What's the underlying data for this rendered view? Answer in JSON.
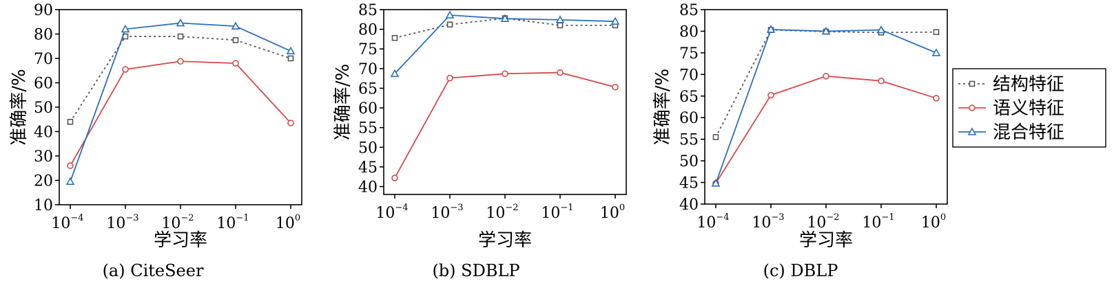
{
  "chart_data": [
    {
      "type": "line",
      "caption": "(a) CiteSeer",
      "xlabel": "学习率",
      "ylabel": "准确率/%",
      "x_ticks": [
        {
          "base": "10",
          "exp": "−4"
        },
        {
          "base": "10",
          "exp": "−3"
        },
        {
          "base": "10",
          "exp": "−2"
        },
        {
          "base": "10",
          "exp": "−1"
        },
        {
          "base": "10",
          "exp": "0"
        }
      ],
      "x": [
        0.0001,
        0.001,
        0.01,
        0.1,
        1
      ],
      "ylim": [
        10,
        90
      ],
      "yticks": [
        "10",
        "20",
        "30",
        "40",
        "50",
        "60",
        "70",
        "80",
        "90"
      ],
      "series": [
        {
          "name": "结构特征",
          "values": [
            44,
            79,
            79,
            77.5,
            70
          ]
        },
        {
          "name": "语义特征",
          "values": [
            26,
            65.5,
            68.8,
            68,
            43.5
          ]
        },
        {
          "name": "混合特征",
          "values": [
            19.5,
            82,
            84.5,
            83.2,
            73
          ]
        }
      ]
    },
    {
      "type": "line",
      "caption": "(b) SDBLP",
      "xlabel": "学习率",
      "ylabel": "准确率/%",
      "x_ticks": [
        {
          "base": "10",
          "exp": "−4"
        },
        {
          "base": "10",
          "exp": "−3"
        },
        {
          "base": "10",
          "exp": "−2"
        },
        {
          "base": "10",
          "exp": "−1"
        },
        {
          "base": "10",
          "exp": "0"
        }
      ],
      "x": [
        0.0001,
        0.001,
        0.01,
        0.1,
        1
      ],
      "ylim": [
        38,
        85
      ],
      "yticks": [
        "40",
        "45",
        "50",
        "55",
        "60",
        "65",
        "70",
        "75",
        "80",
        "85"
      ],
      "series": [
        {
          "name": "结构特征",
          "values": [
            77.8,
            81.2,
            82.8,
            81,
            81
          ]
        },
        {
          "name": "语义特征",
          "values": [
            42.2,
            67.6,
            68.7,
            69,
            65.3
          ]
        },
        {
          "name": "混合特征",
          "values": [
            68.7,
            83.6,
            82.7,
            82.4,
            82
          ]
        }
      ]
    },
    {
      "type": "line",
      "caption": "(c) DBLP",
      "xlabel": "学习率",
      "ylabel": "准确率/%",
      "x_ticks": [
        {
          "base": "10",
          "exp": "−4"
        },
        {
          "base": "10",
          "exp": "−3"
        },
        {
          "base": "10",
          "exp": "−2"
        },
        {
          "base": "10",
          "exp": "−1"
        },
        {
          "base": "10",
          "exp": "0"
        }
      ],
      "x": [
        0.0001,
        0.001,
        0.01,
        0.1,
        1
      ],
      "ylim": [
        40,
        85
      ],
      "yticks": [
        "40",
        "45",
        "50",
        "55",
        "60",
        "65",
        "70",
        "75",
        "80",
        "85"
      ],
      "series": [
        {
          "name": "结构特征",
          "values": [
            55.5,
            80.3,
            79.9,
            79.7,
            79.8
          ]
        },
        {
          "name": "语义特征",
          "values": [
            44.8,
            65.2,
            69.6,
            68.5,
            64.5
          ]
        },
        {
          "name": "混合特征",
          "values": [
            44.8,
            80.4,
            80,
            80.3,
            75
          ]
        }
      ]
    }
  ],
  "legend": {
    "placement": "right",
    "items": [
      {
        "label": "结构特征",
        "marker": "square",
        "line": "dotted",
        "color": "#555555"
      },
      {
        "label": "语义特征",
        "marker": "circle",
        "line": "solid",
        "color": "#d9484a"
      },
      {
        "label": "混合特征",
        "marker": "triangle",
        "line": "solid",
        "color": "#2a6fc0"
      }
    ]
  },
  "series_styles": [
    {
      "color": "#555555",
      "dash": "3,4",
      "marker": "square"
    },
    {
      "color": "#d9484a",
      "dash": "",
      "marker": "circle"
    },
    {
      "color": "#2a6fc0",
      "dash": "",
      "marker": "triangle"
    }
  ]
}
